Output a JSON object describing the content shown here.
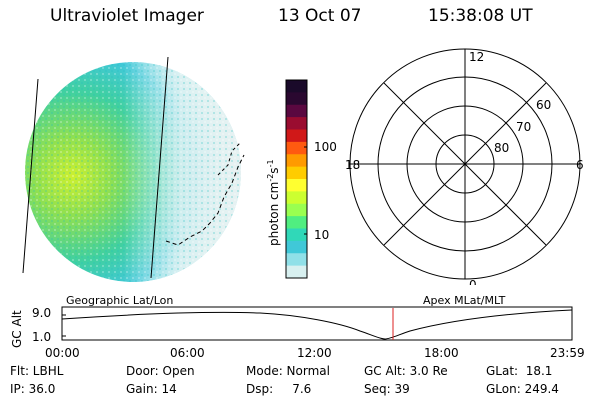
{
  "header": {
    "title": "Ultraviolet Imager",
    "date": "13 Oct 07",
    "time": "15:38:08 UT"
  },
  "colorbar": {
    "label": "photon cm",
    "label_sup1": "-2",
    "label_mid": "s",
    "label_sup2": "-1",
    "tick_100": "100",
    "tick_10": "10",
    "colors": [
      "#1a0a2a",
      "#2a0830",
      "#5a0840",
      "#9a0c30",
      "#d01818",
      "#ff5a10",
      "#ff9a00",
      "#ffcc00",
      "#ffff30",
      "#ccff30",
      "#9aff50",
      "#50ee80",
      "#30d8b8",
      "#40c8d8",
      "#90e0e8",
      "#d8f0f0"
    ]
  },
  "polar": {
    "mlt_12": "12",
    "mlt_18": "18",
    "mlt_6": "6",
    "mlt_0": "0",
    "lat_60": "60",
    "lat_70": "70",
    "lat_80": "80"
  },
  "orbit": {
    "left_label": "Geographic Lat/Lon",
    "right_label": "Apex MLat/MLT",
    "axis_label": "GC Alt",
    "ytick_top": "9.0",
    "ytick_bottom": "1.0",
    "time_ticks": [
      "00:00",
      "06:00",
      "12:00",
      "18:00",
      "23:59"
    ]
  },
  "info": {
    "flt": "Flt: LBHL",
    "ip": "IP: 36.0",
    "door": "Door: Open",
    "gain": "Gain: 14",
    "mode": "Mode: Normal",
    "dsp": "Dsp:     7.6",
    "gcalt": "GC Alt: 3.0 Re",
    "seq": "Seq: 39",
    "glat": "GLat:  18.1",
    "glon": "GLon: 249.4"
  }
}
